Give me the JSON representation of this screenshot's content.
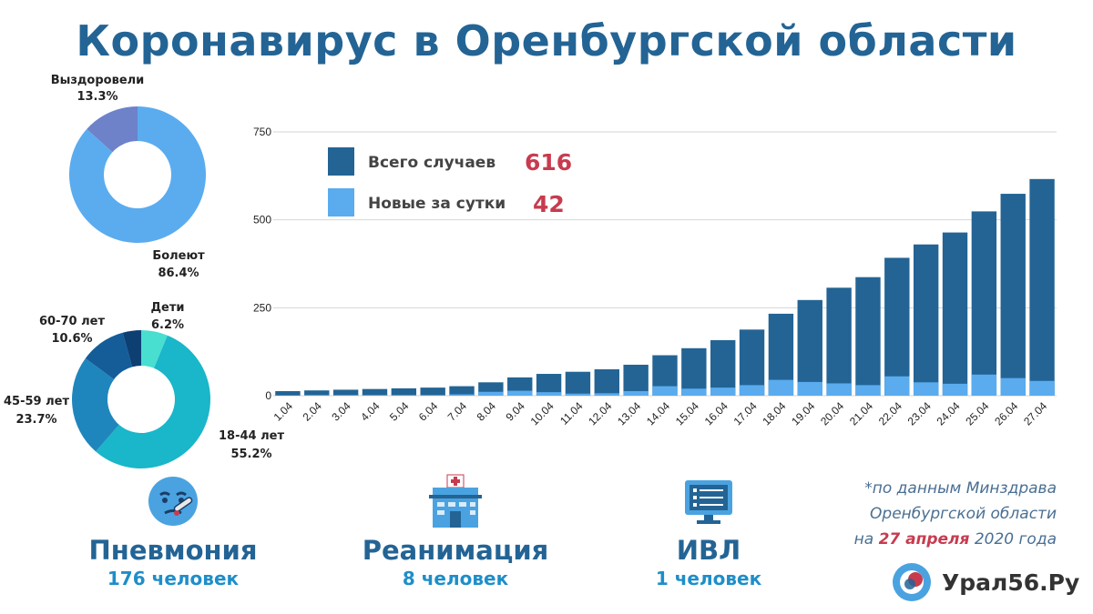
{
  "title": "Коронавирус в Оренбургской области",
  "colors": {
    "title": "#236495",
    "total": "#236495",
    "new": "#5aacef",
    "accent_red": "#c83b4f",
    "stat_value": "#1e8ec9"
  },
  "status_pie": {
    "slices": [
      {
        "label": "Болеют",
        "pct_text": "86.4%",
        "value": 86.4,
        "color": "#5aacef"
      },
      {
        "label": "Выздоровели",
        "pct_text": "13.3%",
        "value": 13.3,
        "color": "#6d82c9"
      }
    ]
  },
  "age_pie": {
    "slices": [
      {
        "label": "Дети",
        "pct_text": "6.2%",
        "value": 6.2,
        "color": "#48ded0"
      },
      {
        "label": "18-44 лет",
        "pct_text": "55.2%",
        "value": 55.2,
        "color": "#1ab6c9"
      },
      {
        "label": "45-59 лет",
        "pct_text": "23.7%",
        "value": 23.7,
        "color": "#1f86bd"
      },
      {
        "label": "60-70 лет",
        "pct_text": "10.6%",
        "value": 10.6,
        "color": "#145d99"
      },
      {
        "label": "",
        "pct_text": "",
        "value": 4.3,
        "color": "#0d3f73"
      }
    ]
  },
  "chart_data": {
    "type": "bar",
    "ylim": [
      0,
      750
    ],
    "yticks": [
      0,
      250,
      500,
      750
    ],
    "grid": true,
    "legend_position": "top-left",
    "categories": [
      "1.04",
      "2.04",
      "3.04",
      "4.04",
      "5.04",
      "6.04",
      "7.04",
      "8.04",
      "9.04",
      "10.04",
      "11.04",
      "12.04",
      "13.04",
      "14.04",
      "15.04",
      "16.04",
      "17.04",
      "18.04",
      "19.04",
      "20.04",
      "21.04",
      "22.04",
      "23.04",
      "24.04",
      "25.04",
      "26.04",
      "27.04"
    ],
    "series": [
      {
        "name": "Всего случаев",
        "values": [
          13,
          15,
          17,
          19,
          21,
          23,
          27,
          38,
          52,
          62,
          68,
          75,
          88,
          115,
          135,
          158,
          188,
          233,
          272,
          307,
          337,
          392,
          430,
          464,
          524,
          574,
          616
        ]
      },
      {
        "name": "Новые за сутки",
        "values": [
          1,
          2,
          2,
          2,
          2,
          2,
          4,
          11,
          14,
          10,
          6,
          7,
          13,
          27,
          20,
          23,
          30,
          45,
          39,
          35,
          30,
          55,
          38,
          34,
          60,
          50,
          42
        ]
      }
    ],
    "legend": [
      {
        "label": "Всего случаев",
        "value": "616"
      },
      {
        "label": "Новые за сутки",
        "value": "42"
      }
    ]
  },
  "stats": [
    {
      "name": "Пневмония",
      "value": "176 человек",
      "icon": "sick-face-icon"
    },
    {
      "name": "Реанимация",
      "value": "8 человек",
      "icon": "hospital-icon"
    },
    {
      "name": "ИВЛ",
      "value": "1 человек",
      "icon": "monitor-icon"
    }
  ],
  "note": {
    "line1": "*по данным Минздрава",
    "line2": "Оренбургской области",
    "line3_pre": "на ",
    "line3_date": "27 апреля",
    "line3_post": " 2020 года"
  },
  "logo": {
    "text": "Урал56.Ру",
    "icon": "ural56-logo-icon"
  }
}
